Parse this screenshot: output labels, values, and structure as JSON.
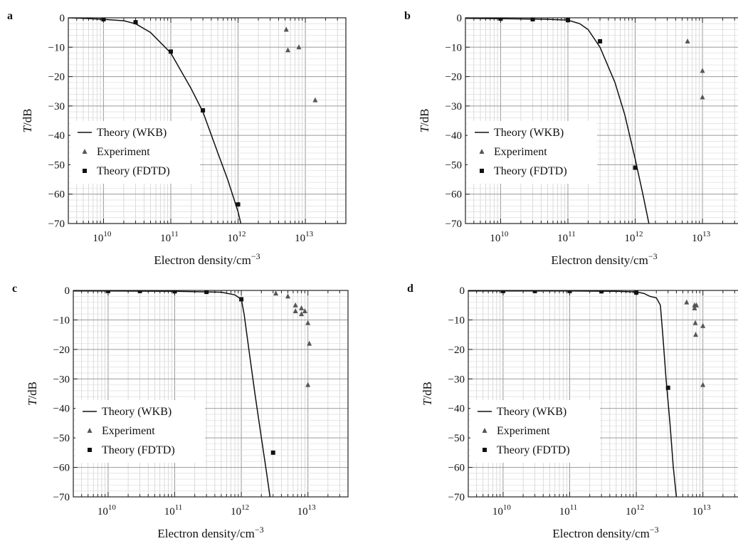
{
  "chart_data": [
    {
      "panel": "a",
      "type": "line",
      "xlabel": "Electron density/cm",
      "xlabel_sup": "−3",
      "ylabel_italic": "T",
      "ylabel_rest": "/dB",
      "x_scale": "log",
      "xlim": [
        3000000000.0,
        40000000000000.0
      ],
      "ylim": [
        -70,
        0
      ],
      "yticks": [
        "0",
        "−10",
        "−20",
        "−30",
        "−40",
        "−50",
        "−60",
        "−70"
      ],
      "xticks": [
        {
          "base": "10",
          "exp": "10"
        },
        {
          "base": "10",
          "exp": "11"
        },
        {
          "base": "10",
          "exp": "12"
        },
        {
          "base": "10",
          "exp": "13"
        }
      ],
      "grid": true,
      "legend_position": "center-left",
      "legend": [
        "Theory (WKB)",
        "Experiment",
        "Theory (FDTD)"
      ],
      "series": [
        {
          "name": "Theory (WKB)",
          "style": "line",
          "x": [
            3000000000.0,
            5000000000.0,
            10000000000.0,
            20000000000.0,
            30000000000.0,
            50000000000.0,
            100000000000.0,
            200000000000.0,
            300000000000.0,
            500000000000.0,
            700000000000.0,
            1000000000000.0,
            1100000000000.0
          ],
          "y": [
            0,
            -0.2,
            -0.5,
            -1.0,
            -2.0,
            -5.0,
            -12,
            -24,
            -32,
            -46,
            -55,
            -66,
            -70
          ]
        },
        {
          "name": "Experiment",
          "style": "triangle",
          "x": [
            5200000000000.0,
            5500000000000.0,
            8000000000000.0,
            14000000000000.0
          ],
          "y": [
            -4,
            -11,
            -10,
            -28
          ]
        },
        {
          "name": "Theory (FDTD)",
          "style": "square",
          "x": [
            10000000000.0,
            30000000000.0,
            100000000000.0,
            300000000000.0,
            1000000000000.0
          ],
          "y": [
            -0.5,
            -1.5,
            -11.5,
            -31.5,
            -63.5
          ]
        }
      ]
    },
    {
      "panel": "b",
      "type": "line",
      "xlabel": "Electron density/cm",
      "xlabel_sup": "−3",
      "ylabel_italic": "T",
      "ylabel_rest": "/dB",
      "x_scale": "log",
      "xlim": [
        3000000000.0,
        40000000000000.0
      ],
      "ylim": [
        -70,
        0
      ],
      "yticks": [
        "0",
        "−10",
        "−20",
        "−30",
        "−40",
        "−50",
        "−60",
        "−70"
      ],
      "xticks": [
        {
          "base": "10",
          "exp": "10"
        },
        {
          "base": "10",
          "exp": "11"
        },
        {
          "base": "10",
          "exp": "12"
        },
        {
          "base": "10",
          "exp": "13"
        }
      ],
      "grid": true,
      "legend_position": "center-left",
      "legend": [
        "Theory (WKB)",
        "Experiment",
        "Theory (FDTD)"
      ],
      "series": [
        {
          "name": "Theory (WKB)",
          "style": "line",
          "x": [
            3000000000.0,
            10000000000.0,
            50000000000.0,
            100000000000.0,
            150000000000.0,
            200000000000.0,
            300000000000.0,
            500000000000.0,
            700000000000.0,
            1000000000000.0,
            1300000000000.0,
            1600000000000.0
          ],
          "y": [
            -0.2,
            -0.3,
            -0.5,
            -0.8,
            -2,
            -4,
            -10,
            -22,
            -33,
            -48,
            -60,
            -70
          ]
        },
        {
          "name": "Experiment",
          "style": "triangle",
          "x": [
            6000000000000.0,
            10000000000000.0,
            10000000000000.0
          ],
          "y": [
            -8,
            -18,
            -27
          ]
        },
        {
          "name": "Theory (FDTD)",
          "style": "square",
          "x": [
            10000000000.0,
            30000000000.0,
            100000000000.0,
            300000000000.0,
            1000000000000.0
          ],
          "y": [
            -0.3,
            -0.5,
            -0.8,
            -8,
            -51
          ]
        }
      ]
    },
    {
      "panel": "c",
      "type": "line",
      "xlabel": "Electron density/cm",
      "xlabel_sup": "−3",
      "ylabel_italic": "T",
      "ylabel_rest": "/dB",
      "x_scale": "log",
      "xlim": [
        3000000000.0,
        40000000000000.0
      ],
      "ylim": [
        -70,
        0
      ],
      "yticks": [
        "0",
        "−10",
        "−20",
        "−30",
        "−40",
        "−50",
        "−60",
        "−70"
      ],
      "xticks": [
        {
          "base": "10",
          "exp": "10"
        },
        {
          "base": "10",
          "exp": "11"
        },
        {
          "base": "10",
          "exp": "12"
        },
        {
          "base": "10",
          "exp": "13"
        }
      ],
      "grid": true,
      "legend_position": "bottom-left",
      "legend": [
        "Theory (WKB)",
        "Experiment",
        "Theory (FDTD)"
      ],
      "series": [
        {
          "name": "Theory (WKB)",
          "style": "line",
          "x": [
            3000000000.0,
            10000000000.0,
            100000000000.0,
            500000000000.0,
            800000000000.0,
            1000000000000.0,
            1100000000000.0,
            1300000000000.0,
            1600000000000.0,
            2000000000000.0,
            2400000000000.0,
            2700000000000.0
          ],
          "y": [
            -0.2,
            -0.2,
            -0.3,
            -0.6,
            -1.5,
            -3,
            -8,
            -20,
            -35,
            -50,
            -62,
            -70
          ]
        },
        {
          "name": "Experiment",
          "style": "triangle",
          "x": [
            3300000000000.0,
            5000000000000.0,
            6500000000000.0,
            6500000000000.0,
            8000000000000.0,
            8000000000000.0,
            9000000000000.0,
            10000000000000.0,
            10500000000000.0,
            10000000000000.0
          ],
          "y": [
            -1,
            -2,
            -5,
            -7,
            -6,
            -8,
            -7,
            -11,
            -18,
            -32
          ]
        },
        {
          "name": "Theory (FDTD)",
          "style": "square",
          "x": [
            10000000000.0,
            30000000000.0,
            100000000000.0,
            300000000000.0,
            1000000000000.0,
            3000000000000.0
          ],
          "y": [
            -0.2,
            -0.2,
            -0.3,
            -0.5,
            -3,
            -55
          ]
        }
      ]
    },
    {
      "panel": "d",
      "type": "line",
      "xlabel": "Electron density/cm",
      "xlabel_sup": "−3",
      "ylabel_italic": "T",
      "ylabel_rest": "/dB",
      "x_scale": "log",
      "xlim": [
        3000000000.0,
        40000000000000.0
      ],
      "ylim": [
        -70,
        0
      ],
      "yticks": [
        "0",
        "−10",
        "−20",
        "−30",
        "−40",
        "−50",
        "−60",
        "−70"
      ],
      "xticks": [
        {
          "base": "10",
          "exp": "10"
        },
        {
          "base": "10",
          "exp": "11"
        },
        {
          "base": "10",
          "exp": "12"
        },
        {
          "base": "10",
          "exp": "13"
        }
      ],
      "grid": true,
      "legend_position": "center-left",
      "legend": [
        "Theory (WKB)",
        "Experiment",
        "Theory (FDTD)"
      ],
      "series": [
        {
          "name": "Theory (WKB)",
          "style": "line",
          "x": [
            3000000000.0,
            10000000000.0,
            100000000000.0,
            500000000000.0,
            1000000000000.0,
            1300000000000.0,
            1600000000000.0,
            2000000000000.0,
            2300000000000.0,
            2500000000000.0,
            2800000000000.0,
            3200000000000.0,
            3600000000000.0,
            4000000000000.0
          ],
          "y": [
            -0.2,
            -0.2,
            -0.2,
            -0.3,
            -0.5,
            -1.0,
            -2.0,
            -2.5,
            -5,
            -15,
            -30,
            -45,
            -60,
            -70
          ]
        },
        {
          "name": "Experiment",
          "style": "triangle",
          "x": [
            5700000000000.0,
            7500000000000.0,
            7500000000000.0,
            7700000000000.0,
            7800000000000.0,
            8000000000000.0,
            10000000000000.0,
            10000000000000.0
          ],
          "y": [
            -4,
            -5,
            -6,
            -11,
            -15,
            -5,
            -12,
            -32
          ]
        },
        {
          "name": "Theory (FDTD)",
          "style": "square",
          "x": [
            10000000000.0,
            30000000000.0,
            100000000000.0,
            300000000000.0,
            1000000000000.0,
            3000000000000.0
          ],
          "y": [
            -0.2,
            -0.2,
            -0.2,
            -0.3,
            -0.7,
            -33
          ]
        }
      ]
    }
  ]
}
